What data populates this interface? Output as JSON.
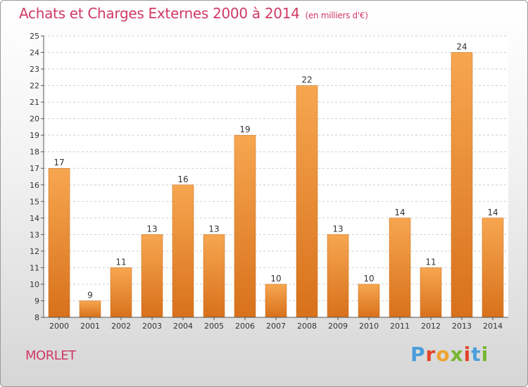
{
  "header": {
    "title": "Achats et Charges Externes 2000 à 2014",
    "unit": "(en milliers d'€)"
  },
  "footer": {
    "commune": "MORLET",
    "logo_text": "Proxiti"
  },
  "colors": {
    "title": "#d03a63",
    "bar_top": "#f7a650",
    "bar_bottom": "#d8711b",
    "logo": [
      "#4a9edb",
      "#e4452b",
      "#f0a22e",
      "#79b730",
      "#e4452b",
      "#4a9edb",
      "#79b730"
    ]
  },
  "chart_data": {
    "type": "bar",
    "categories": [
      "2000",
      "2001",
      "2002",
      "2003",
      "2004",
      "2005",
      "2006",
      "2007",
      "2008",
      "2009",
      "2010",
      "2011",
      "2012",
      "2013",
      "2014"
    ],
    "values": [
      17,
      9,
      11,
      13,
      16,
      13,
      19,
      10,
      22,
      13,
      10,
      14,
      11,
      24,
      14
    ],
    "ylim": [
      8,
      25
    ],
    "yticks": [
      8,
      9,
      10,
      11,
      12,
      13,
      14,
      15,
      16,
      17,
      18,
      19,
      20,
      21,
      22,
      23,
      24,
      25
    ],
    "xlabel": "",
    "ylabel": "",
    "grid": "horizontal-dashed",
    "data_labels": true
  }
}
